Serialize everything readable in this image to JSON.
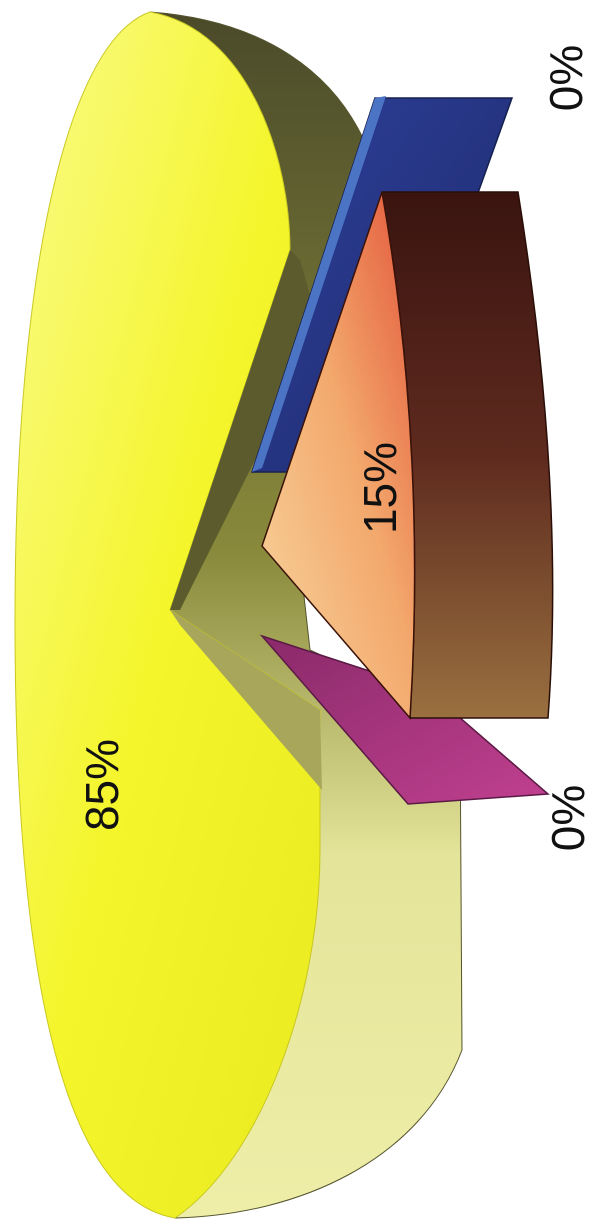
{
  "chart_data": {
    "type": "pie",
    "series": [
      {
        "label": "85%",
        "value": 85,
        "color": "#f2f224"
      },
      {
        "label": "15%",
        "value": 15,
        "color": "#8a3e2c"
      },
      {
        "label": "0%",
        "value": 0,
        "color": "#2b3a8c"
      },
      {
        "label": "0%",
        "value": 0,
        "color": "#b03a86"
      }
    ],
    "title": "",
    "legend": "none",
    "style": "3D exploded pie, rotated 90 degrees"
  }
}
